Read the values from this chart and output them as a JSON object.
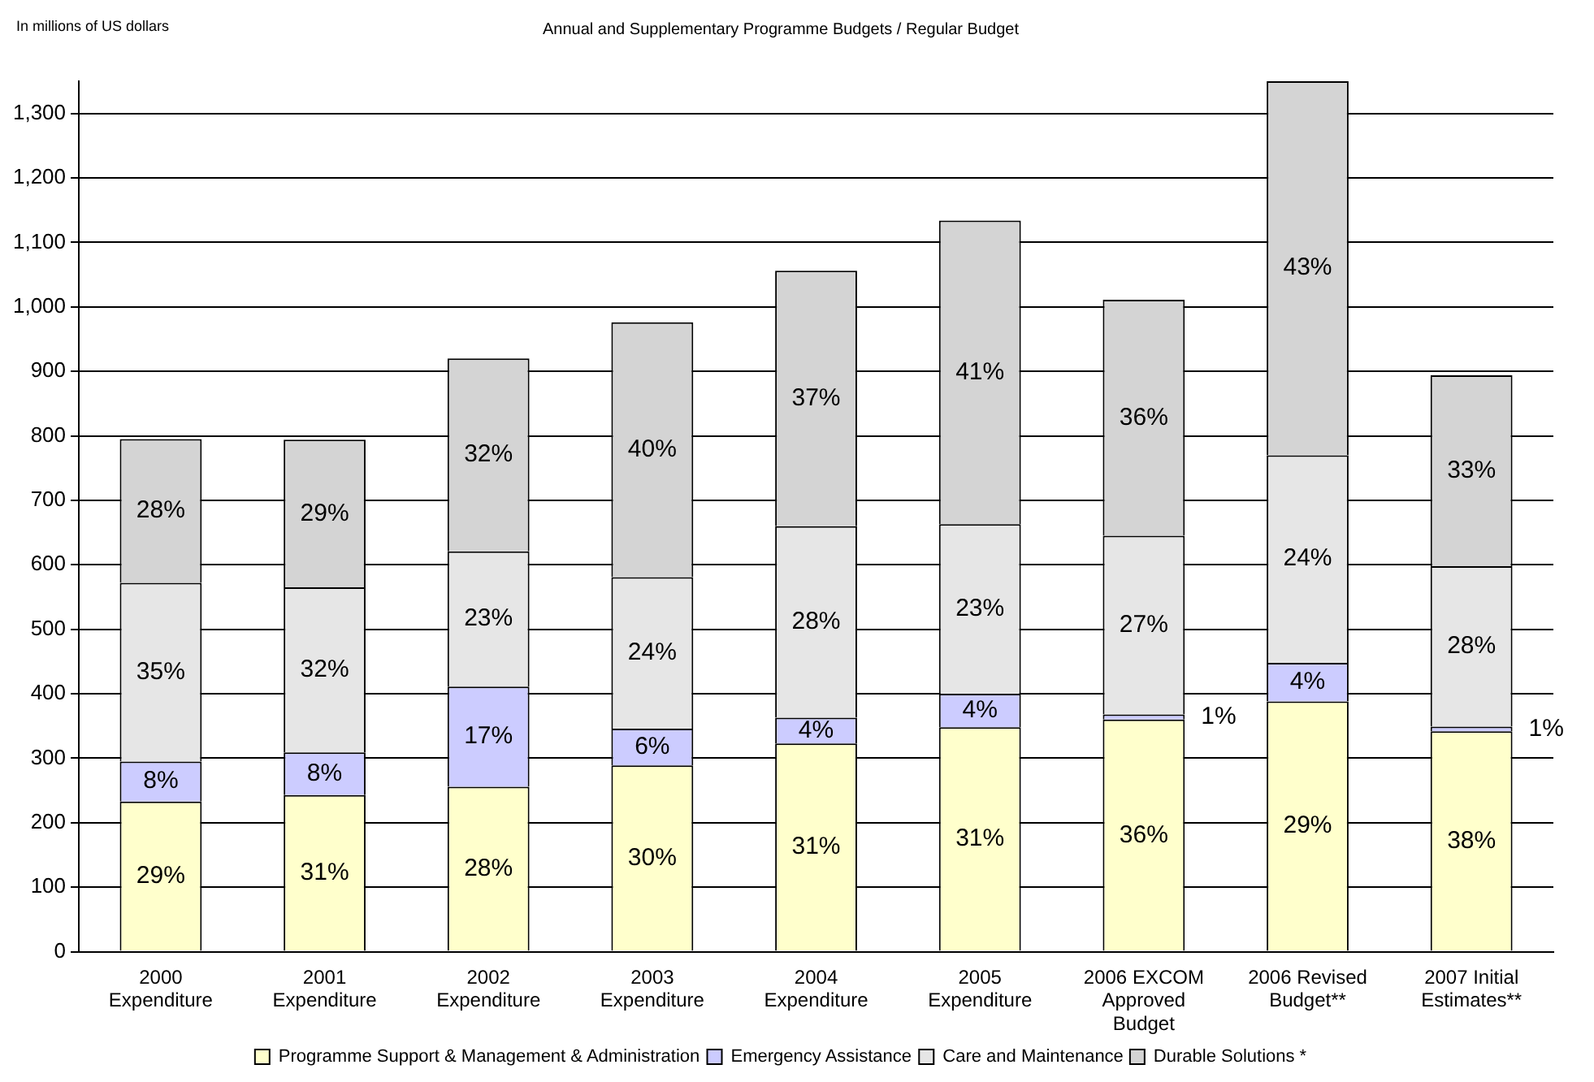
{
  "chart_data": {
    "type": "bar",
    "title": "Annual and Supplementary Programme Budgets / Regular Budget",
    "annotations": [
      "In millions of US dollars",
      "29%",
      "8%",
      "35%",
      "28%",
      "31%",
      "8%",
      "32%",
      "29%",
      "28%",
      "17%",
      "23%",
      "32%",
      "30%",
      "6%",
      "24%",
      "40%",
      "31%",
      "4%",
      "28%",
      "37%",
      "31%",
      "4%",
      "23%",
      "41%",
      "36%",
      "1%",
      "27%",
      "36%",
      "29%",
      "4%",
      "24%",
      "43%",
      "38%",
      "1%",
      "28%",
      "33%"
    ],
    "categories": [
      "2000 Expenditure",
      "2001 Expenditure",
      "2002 Expenditure",
      "2003 Expenditure",
      "2004 Expenditure",
      "2005 Expenditure",
      "2006 EXCOM Approved Budget",
      "2006 Revised Budget**",
      "2007 Initial Estimates**"
    ],
    "stacked": true,
    "ylim": [
      0,
      1350
    ],
    "yticks": [
      0,
      100,
      200,
      300,
      400,
      500,
      600,
      700,
      800,
      900,
      {
        "value": 1000,
        "label": "1,000"
      },
      {
        "value": 1100,
        "label": "1,100"
      },
      {
        "value": 1200,
        "label": "1,200"
      },
      {
        "value": 1300,
        "label": "1,300"
      }
    ],
    "grid": "y",
    "legend": "bottom",
    "series": [
      {
        "name": "Programme Support & Management & Administration",
        "color": "#ffffcc",
        "values": [
          233,
          243,
          256,
          289,
          323,
          348,
          360,
          388,
          342
        ]
      },
      {
        "name": "Emergency Assistance",
        "color": "#ccccff",
        "values": [
          62,
          66,
          155,
          57,
          40,
          52,
          8,
          60,
          7
        ]
      },
      {
        "name": "Care and Maintenance",
        "color": "#e6e6e6",
        "values": [
          277,
          256,
          210,
          235,
          297,
          263,
          277,
          322,
          249
        ]
      },
      {
        "name": "Durable Solutions *",
        "color": "#d4d4d4",
        "values": [
          223,
          229,
          299,
          395,
          396,
          471,
          366,
          580,
          296
        ]
      }
    ]
  }
}
